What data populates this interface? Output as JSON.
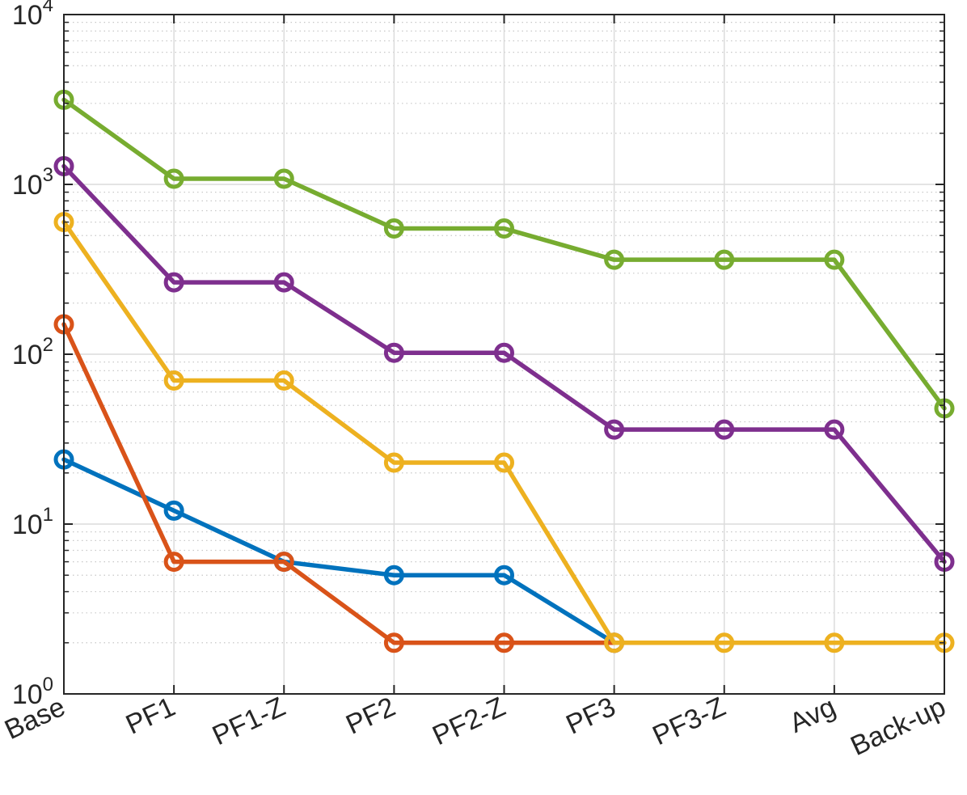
{
  "chart_data": {
    "type": "line",
    "y_scale": "log",
    "ylim": [
      1,
      10000
    ],
    "grid": true,
    "minor_grid": true,
    "categories": [
      "Base",
      "PF1",
      "PF1-Z",
      "PF2",
      "PF2-Z",
      "PF3",
      "PF3-Z",
      "Avg",
      "Back-up"
    ],
    "y_ticks": [
      {
        "base": "10",
        "exp": "0",
        "value": 1
      },
      {
        "base": "10",
        "exp": "1",
        "value": 10
      },
      {
        "base": "10",
        "exp": "2",
        "value": 100
      },
      {
        "base": "10",
        "exp": "3",
        "value": 1000
      },
      {
        "base": "10",
        "exp": "4",
        "value": 10000
      }
    ],
    "series": [
      {
        "color": "#0072BD",
        "values": [
          24,
          12,
          6,
          5,
          5,
          2,
          null,
          null,
          null
        ]
      },
      {
        "color": "#D95319",
        "values": [
          150,
          6,
          6,
          2,
          2,
          2,
          null,
          null,
          null
        ]
      },
      {
        "color": "#EDB120",
        "values": [
          600,
          70,
          70,
          23,
          23,
          2,
          2,
          2,
          2
        ]
      },
      {
        "color": "#7E2F8E",
        "values": [
          1280,
          265,
          265,
          102,
          102,
          36,
          36,
          36,
          6
        ]
      },
      {
        "color": "#77AC30",
        "values": [
          3150,
          1080,
          1080,
          550,
          550,
          360,
          360,
          360,
          48
        ]
      }
    ]
  }
}
